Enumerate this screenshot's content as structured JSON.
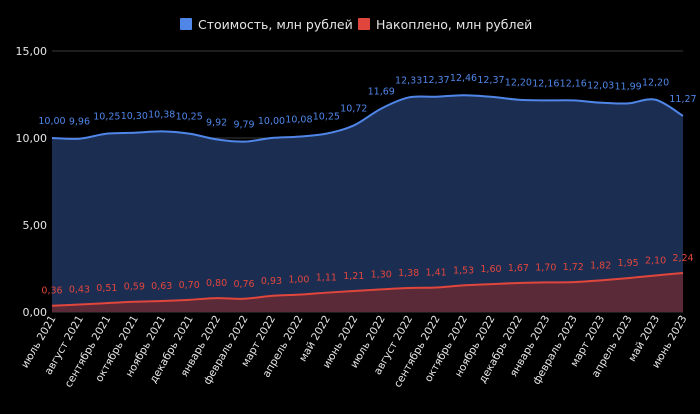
{
  "chart_data": {
    "type": "area",
    "categories": [
      "июль 2021",
      "август 2021",
      "сентябрь 2021",
      "октябрь 2021",
      "ноябрь 2021",
      "декабрь 2021",
      "январь 2022",
      "февраль 2022",
      "март 2022",
      "апрель 2022",
      "май 2022",
      "июнь 2022",
      "июль 2022",
      "август 2022",
      "сентябрь 2022",
      "октябрь 2022",
      "ноябрь 2022",
      "декабрь 2022",
      "январь 2023",
      "февраль 2023",
      "март 2023",
      "апрель 2023",
      "май 2023",
      "июнь 2023"
    ],
    "series": [
      {
        "name": "Стоимость, млн рублей",
        "color": "#4f86e8",
        "fill": "#1c2d52",
        "values": [
          10.0,
          9.96,
          10.25,
          10.3,
          10.38,
          10.25,
          9.92,
          9.79,
          10.0,
          10.08,
          10.25,
          10.72,
          11.69,
          12.33,
          12.37,
          12.46,
          12.37,
          12.2,
          12.16,
          12.16,
          12.03,
          11.99,
          12.2,
          11.27
        ],
        "labels": [
          "10,00",
          "9,96",
          "10,25",
          "10,30",
          "10,38",
          "10,25",
          "9,92",
          "9,79",
          "10,00",
          "10,08",
          "10,25",
          "10,72",
          "11,69",
          "12,33",
          "12,37",
          "12,46",
          "12,37",
          "12,20",
          "12,16",
          "12,16",
          "12,03",
          "11,99",
          "12,20",
          "11,27"
        ]
      },
      {
        "name": "Накоплено, млн рублей",
        "color": "#e0463c",
        "fill": "#5a2a38",
        "values": [
          0.36,
          0.43,
          0.51,
          0.59,
          0.63,
          0.7,
          0.8,
          0.76,
          0.93,
          1.0,
          1.11,
          1.21,
          1.3,
          1.38,
          1.41,
          1.53,
          1.6,
          1.67,
          1.7,
          1.72,
          1.82,
          1.95,
          2.1,
          2.24
        ],
        "labels": [
          "0,36",
          "0,43",
          "0,51",
          "0,59",
          "0,63",
          "0,70",
          "0,80",
          "0,76",
          "0,93",
          "1,00",
          "1,11",
          "1,21",
          "1,30",
          "1,38",
          "1,41",
          "1,53",
          "1,60",
          "1,67",
          "1,70",
          "1,72",
          "1,82",
          "1,95",
          "2,10",
          "2,24"
        ]
      }
    ],
    "ylim": [
      0,
      15
    ],
    "yticks": [
      0,
      5,
      10,
      15
    ],
    "ytick_labels": [
      "0,00",
      "5,00",
      "10,00",
      "15,00"
    ],
    "grid": true,
    "legend": "top-center"
  }
}
